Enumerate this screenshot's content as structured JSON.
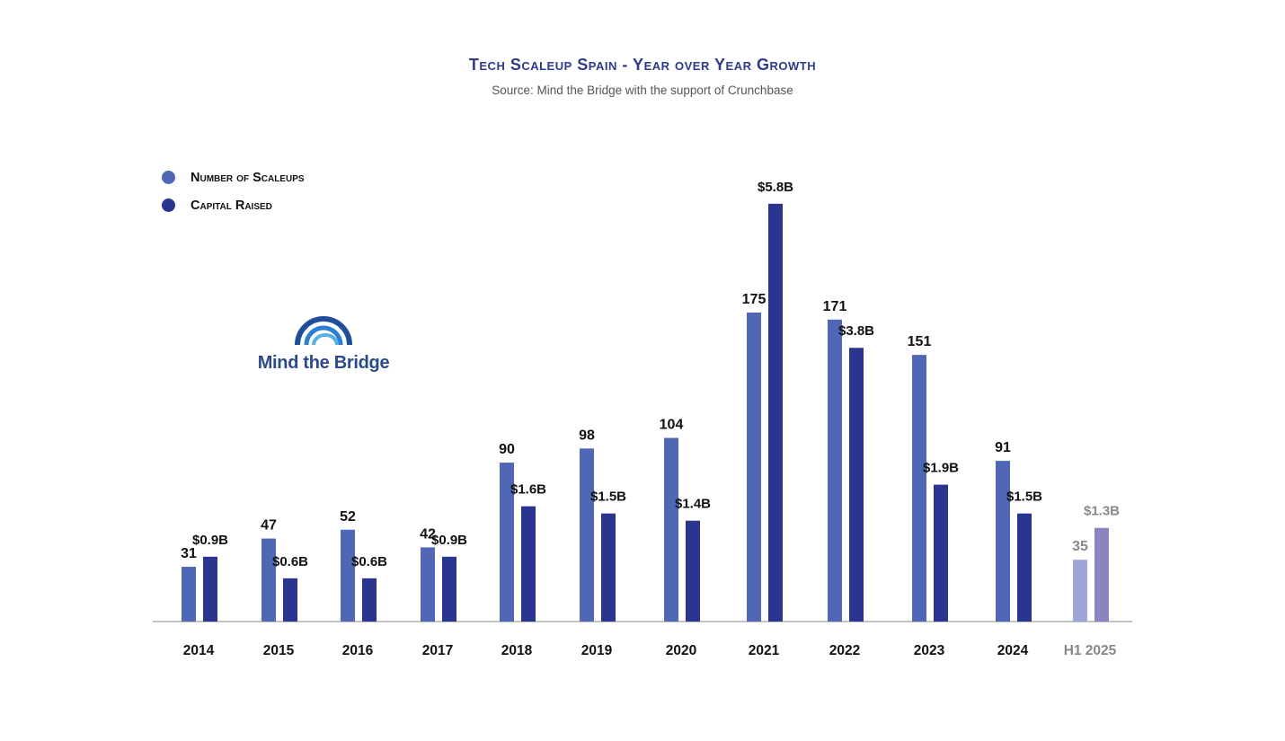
{
  "title": "Tech Scaleup Spain - Year over Year Growth",
  "subtitle": "Source: Mind the Bridge with the support of Crunchbase",
  "logo_text": "Mind the Bridge",
  "colors": {
    "scaleups": "#4f67b5",
    "capital": "#2b3590",
    "scaleups_partial": "#9ea6d8",
    "capital_partial": "#8a84bf",
    "title": "#2e3a8c",
    "partial_label": "#888888"
  },
  "chart_data": {
    "type": "bar",
    "title": "Tech Scaleup Spain - Year over Year Growth",
    "categories": [
      "2014",
      "2015",
      "2016",
      "2017",
      "2018",
      "2019",
      "2020",
      "2021",
      "2022",
      "2023",
      "2024",
      "H1 2025"
    ],
    "legend_position": "top-left",
    "grid": false,
    "series": [
      {
        "name": "Number of Scaleups",
        "values": [
          31,
          47,
          52,
          42,
          90,
          98,
          104,
          175,
          171,
          151,
          91,
          35
        ],
        "labels": [
          "31",
          "47",
          "52",
          "42",
          "90",
          "98",
          "104",
          "175",
          "171",
          "151",
          "91",
          "35"
        ]
      },
      {
        "name": "Capital Raised",
        "unit": "$B",
        "values": [
          0.9,
          0.6,
          0.6,
          0.9,
          1.6,
          1.5,
          1.4,
          5.8,
          3.8,
          1.9,
          1.5,
          1.3
        ],
        "labels": [
          "$0.9B",
          "$0.6B",
          "$0.6B",
          "$0.9B",
          "$1.6B",
          "$1.5B",
          "$1.4B",
          "$5.8B",
          "$3.8B",
          "$1.9B",
          "$1.5B",
          "$1.3B"
        ]
      }
    ],
    "partial_category": "H1 2025"
  }
}
